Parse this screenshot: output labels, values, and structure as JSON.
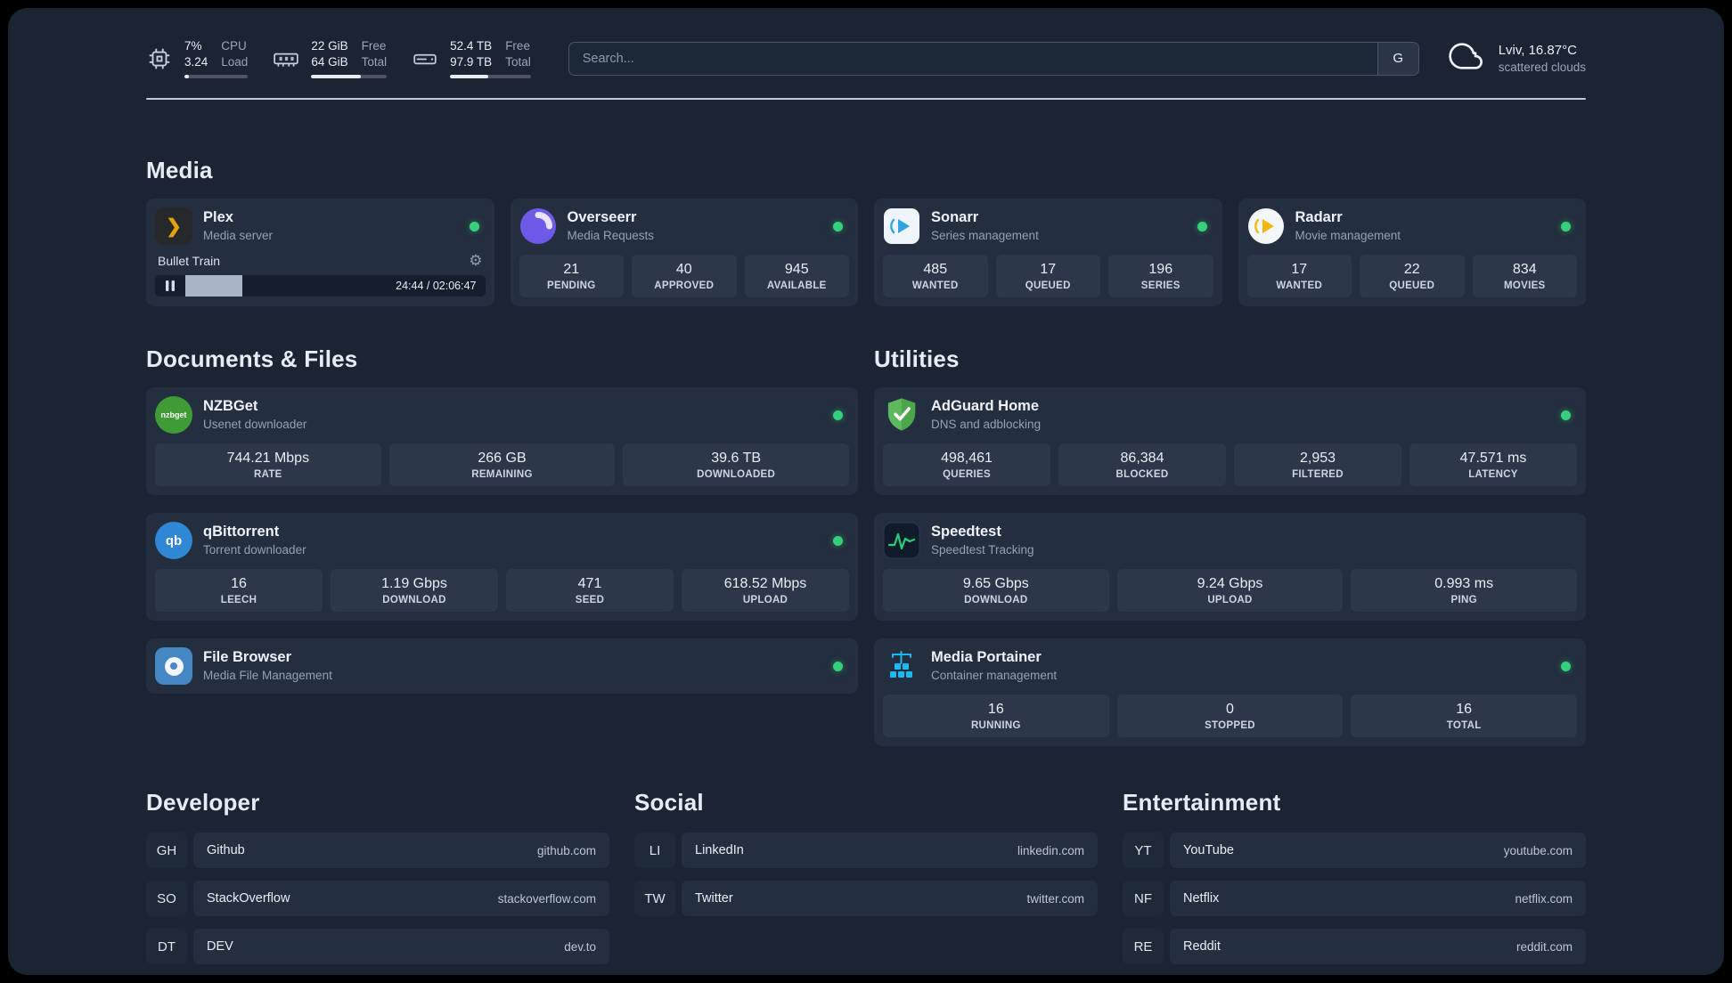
{
  "topbar": {
    "cpu": {
      "line1": "7%",
      "line2": "3.24",
      "label1": "CPU",
      "label2": "Load",
      "bar_percent": 7
    },
    "ram": {
      "line1": "22 GiB",
      "line2": "64 GiB",
      "label1": "Free",
      "label2": "Total",
      "bar_percent": 66
    },
    "disk": {
      "line1": "52.4 TB",
      "line2": "97.9 TB",
      "label1": "Free",
      "label2": "Total",
      "bar_percent": 47
    },
    "search": {
      "placeholder": "Search...",
      "provider": "G"
    },
    "weather": {
      "location": "Lviv, 16.87°C",
      "condition": "scattered clouds"
    }
  },
  "sections": {
    "media": "Media",
    "documents": "Documents & Files",
    "utilities": "Utilities",
    "developer": "Developer",
    "social": "Social",
    "entertainment": "Entertainment"
  },
  "services": {
    "plex": {
      "name": "Plex",
      "subtitle": "Media server",
      "status": "online",
      "now_playing": "Bullet Train",
      "time": "24:44 / 02:06:47",
      "progress_percent": 19
    },
    "overseerr": {
      "name": "Overseerr",
      "subtitle": "Media Requests",
      "status": "online",
      "stats": [
        {
          "value": "21",
          "label": "PENDING"
        },
        {
          "value": "40",
          "label": "APPROVED"
        },
        {
          "value": "945",
          "label": "AVAILABLE"
        }
      ]
    },
    "sonarr": {
      "name": "Sonarr",
      "subtitle": "Series management",
      "status": "online",
      "stats": [
        {
          "value": "485",
          "label": "WANTED"
        },
        {
          "value": "17",
          "label": "QUEUED"
        },
        {
          "value": "196",
          "label": "SERIES"
        }
      ]
    },
    "radarr": {
      "name": "Radarr",
      "subtitle": "Movie management",
      "status": "online",
      "stats": [
        {
          "value": "17",
          "label": "WANTED"
        },
        {
          "value": "22",
          "label": "QUEUED"
        },
        {
          "value": "834",
          "label": "MOVIES"
        }
      ]
    },
    "nzbget": {
      "name": "NZBGet",
      "subtitle": "Usenet downloader",
      "status": "online",
      "stats": [
        {
          "value": "744.21 Mbps",
          "label": "RATE"
        },
        {
          "value": "266 GB",
          "label": "REMAINING"
        },
        {
          "value": "39.6 TB",
          "label": "DOWNLOADED"
        }
      ]
    },
    "qbittorrent": {
      "name": "qBittorrent",
      "subtitle": "Torrent downloader",
      "status": "online",
      "stats": [
        {
          "value": "16",
          "label": "LEECH"
        },
        {
          "value": "1.19 Gbps",
          "label": "DOWNLOAD"
        },
        {
          "value": "471",
          "label": "SEED"
        },
        {
          "value": "618.52 Mbps",
          "label": "UPLOAD"
        }
      ]
    },
    "filebrowser": {
      "name": "File Browser",
      "subtitle": "Media File Management",
      "status": "online"
    },
    "adguard": {
      "name": "AdGuard Home",
      "subtitle": "DNS and adblocking",
      "status": "online",
      "stats": [
        {
          "value": "498,461",
          "label": "QUERIES"
        },
        {
          "value": "86,384",
          "label": "BLOCKED"
        },
        {
          "value": "2,953",
          "label": "FILTERED"
        },
        {
          "value": "47.571 ms",
          "label": "LATENCY"
        }
      ]
    },
    "speedtest": {
      "name": "Speedtest",
      "subtitle": "Speedtest Tracking",
      "status": "online",
      "stats": [
        {
          "value": "9.65 Gbps",
          "label": "DOWNLOAD"
        },
        {
          "value": "9.24 Gbps",
          "label": "UPLOAD"
        },
        {
          "value": "0.993 ms",
          "label": "PING"
        }
      ]
    },
    "portainer": {
      "name": "Media Portainer",
      "subtitle": "Container management",
      "status": "online",
      "stats": [
        {
          "value": "16",
          "label": "RUNNING"
        },
        {
          "value": "0",
          "label": "STOPPED"
        },
        {
          "value": "16",
          "label": "TOTAL"
        }
      ]
    }
  },
  "bookmarks": {
    "developer": [
      {
        "abbr": "GH",
        "name": "Github",
        "url": "github.com"
      },
      {
        "abbr": "SO",
        "name": "StackOverflow",
        "url": "stackoverflow.com"
      },
      {
        "abbr": "DT",
        "name": "DEV",
        "url": "dev.to"
      }
    ],
    "social": [
      {
        "abbr": "LI",
        "name": "LinkedIn",
        "url": "linkedin.com"
      },
      {
        "abbr": "TW",
        "name": "Twitter",
        "url": "twitter.com"
      }
    ],
    "entertainment": [
      {
        "abbr": "YT",
        "name": "YouTube",
        "url": "youtube.com"
      },
      {
        "abbr": "NF",
        "name": "Netflix",
        "url": "netflix.com"
      },
      {
        "abbr": "RE",
        "name": "Reddit",
        "url": "reddit.com"
      }
    ]
  },
  "icons": {
    "gear": "⚙",
    "plex_chevron": "❯",
    "qbittorrent_text": "qb",
    "nzbget_text": "nzbget"
  },
  "colors": {
    "background": "#1b2433",
    "card": "#232e3f",
    "tile": "#2c3849",
    "status_online": "#35d07a",
    "plex_gold": "#e5a00d",
    "overseerr_purple": "#6d5ae8",
    "sonarr_blue": "#2ea7e0",
    "radarr_orange": "#f5b70f",
    "nzbget_green": "#3f9c35",
    "qbittorrent_blue": "#3087d6",
    "filebrowser_blue": "#4586c5",
    "adguard_green": "#5eb95e",
    "speedtest_green": "#21d07c",
    "portainer_blue": "#19b9f2"
  }
}
